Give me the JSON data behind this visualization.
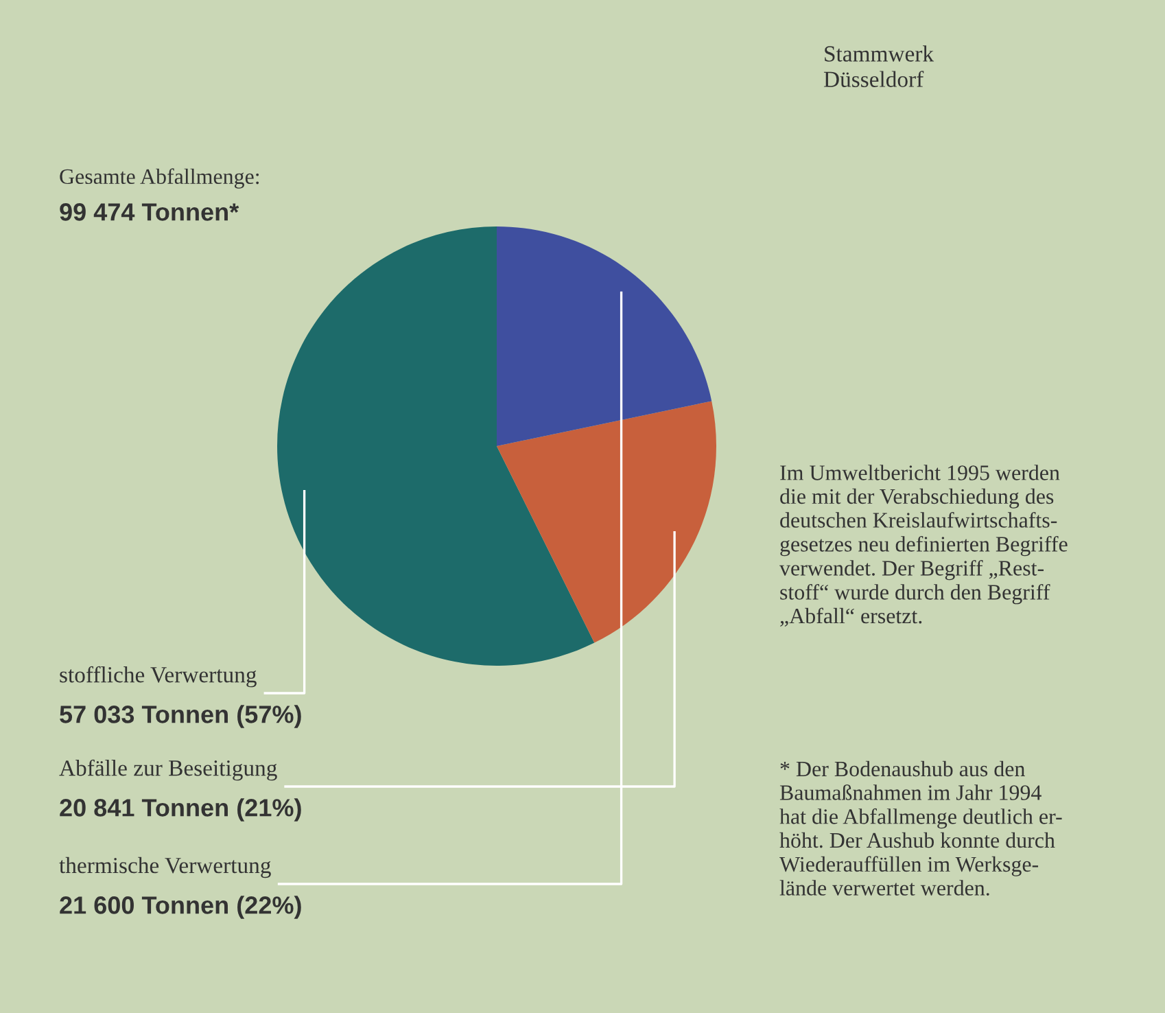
{
  "chart_data": {
    "type": "pie",
    "title": "Stammwerk\nDüsseldorf",
    "categories": [
      "stoffliche Verwertung",
      "Abfälle zur Beseitigung",
      "thermische Verwertung"
    ],
    "values": [
      57033,
      20841,
      21600
    ],
    "value_labels": [
      "57 033 Tonnen (57%)",
      "20 841 Tonnen (21%)",
      "21 600 Tonnen (22%)"
    ],
    "colors": [
      "#1d6b6a",
      "#c8603c",
      "#3f4f9f"
    ],
    "annotations": [
      "Gesamte Abfallmenge:",
      "99 474 Tonnen*",
      "Im Umweltbericht 1995 werden\ndie mit der Verabschiedung des\ndeutschen Kreislaufwirtschafts-\ngesetzes neu definierten Begriffe\nverwendet. Der Begriff „Rest-\nstoff“ wurde durch den Begriff\n„Abfall“ ersetzt.",
      "* Der Bodenaushub aus den\nBaumaßnahmen im Jahr 1994\nhat die Abfallmenge deutlich er-\nhöht. Der Aushub konnte durch\nWiederauffüllen im Werksge-\nlände verwertet werden."
    ]
  }
}
